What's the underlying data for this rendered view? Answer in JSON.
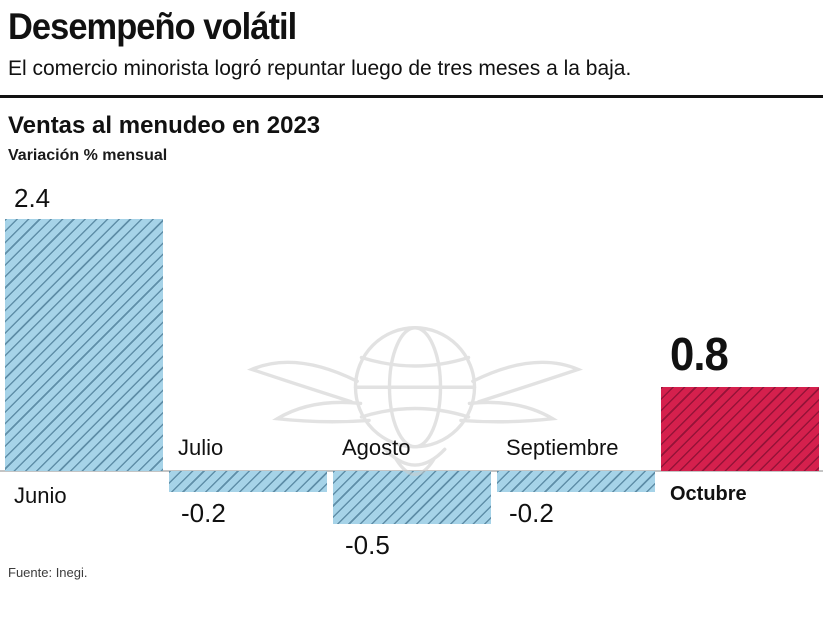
{
  "header": {
    "title": "Desempeño volátil",
    "subtitle": "El comercio minorista logró repuntar luego de tres meses a la baja."
  },
  "chart": {
    "title": "Ventas al menudeo en 2023",
    "subtitle": "Variación % mensual"
  },
  "chart_data": {
    "type": "bar",
    "categories": [
      "Junio",
      "Julio",
      "Agosto",
      "Septiembre",
      "Octubre"
    ],
    "values": [
      2.4,
      -0.2,
      -0.5,
      -0.2,
      0.8
    ],
    "value_labels": [
      "2.4",
      "-0.2",
      "-0.5",
      "-0.2",
      "0.8"
    ],
    "title": "Ventas al menudeo en 2023",
    "xlabel": "",
    "ylabel": "Variación % mensual",
    "ylim": [
      -0.7,
      2.6
    ],
    "highlight_index": 4,
    "colors": {
      "bar_default": "#a6d3e8",
      "bar_highlight": "#d5204d",
      "hatch_default": "#255673",
      "hatch_highlight": "#600826",
      "zero_line": "#c4c4c4"
    },
    "grid": false,
    "legend": false
  },
  "watermark": {
    "name": "winged-globe-logo"
  },
  "footer": {
    "source": "Fuente: Inegi."
  }
}
